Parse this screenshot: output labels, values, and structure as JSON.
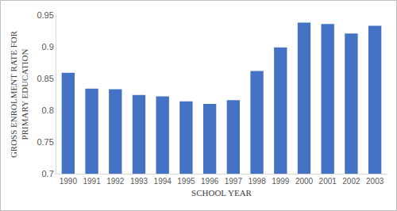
{
  "chart_data": {
    "type": "bar",
    "categories": [
      "1990",
      "1991",
      "1992",
      "1993",
      "1994",
      "1995",
      "1996",
      "1997",
      "1998",
      "1999",
      "2000",
      "2001",
      "2002",
      "2003"
    ],
    "values": [
      0.859,
      0.834,
      0.833,
      0.824,
      0.822,
      0.814,
      0.81,
      0.816,
      0.862,
      0.899,
      0.938,
      0.936,
      0.921,
      0.933
    ],
    "color": "#4472c4",
    "x_label": "SCHOOL YEAR",
    "y_label": "GROSS ENROLMENT RATE FOR PRIMARY EDUCATION",
    "ylim": [
      0.7,
      0.95
    ],
    "yticks": [
      0.7,
      0.75,
      0.8,
      0.85,
      0.9,
      0.95
    ],
    "grid": false
  }
}
